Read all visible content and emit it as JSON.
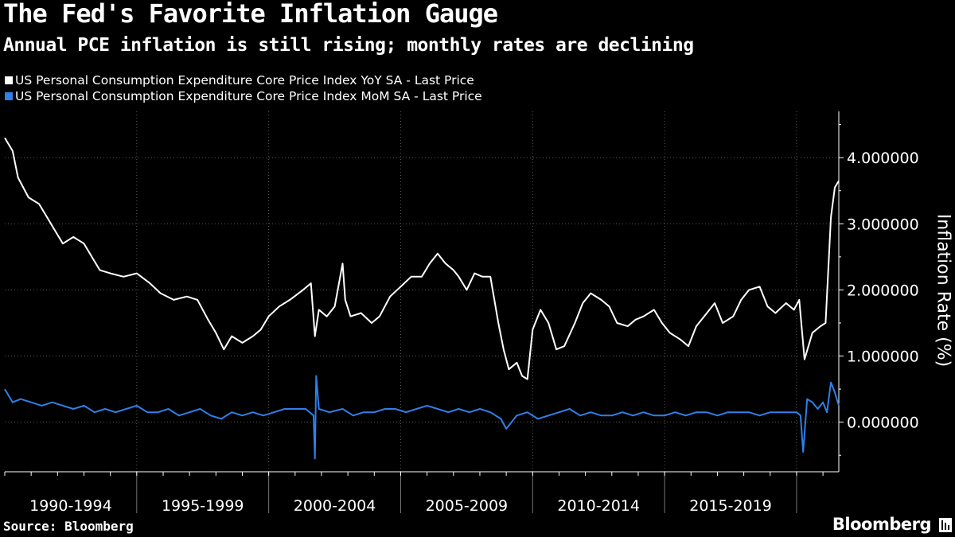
{
  "title": "The Fed's Favorite Inflation Gauge",
  "subtitle": "Annual PCE inflation is still rising; monthly rates are declining",
  "source": "Source: Bloomberg",
  "brand": "Bloomberg",
  "chart_data": {
    "type": "line",
    "ylabel": "Inflation Rate (%)",
    "ylim": [
      -0.75,
      4.7
    ],
    "yticks": [
      0,
      1,
      2,
      3,
      4
    ],
    "ytick_labels": [
      "0.000000",
      "1.000000",
      "2.000000",
      "3.000000",
      "4.000000"
    ],
    "xlim": [
      1990.0,
      2021.6
    ],
    "x_periods": [
      {
        "label": "1990-1994",
        "start": 1990,
        "end": 1995
      },
      {
        "label": "1995-1999",
        "start": 1995,
        "end": 2000
      },
      {
        "label": "2000-2004",
        "start": 2000,
        "end": 2005
      },
      {
        "label": "2005-2009",
        "start": 2005,
        "end": 2010
      },
      {
        "label": "2010-2014",
        "start": 2010,
        "end": 2015
      },
      {
        "label": "2015-2019",
        "start": 2015,
        "end": 2020
      }
    ],
    "grid": true,
    "legend_position": "top-left",
    "series": [
      {
        "name": "US Personal Consumption Expenditure Core Price Index YoY SA - Last Price",
        "color": "#ffffff",
        "points": [
          [
            1990.0,
            4.3
          ],
          [
            1990.3,
            4.1
          ],
          [
            1990.5,
            3.7
          ],
          [
            1990.9,
            3.4
          ],
          [
            1991.3,
            3.3
          ],
          [
            1991.6,
            3.1
          ],
          [
            1991.9,
            2.9
          ],
          [
            1992.2,
            2.7
          ],
          [
            1992.6,
            2.8
          ],
          [
            1993.0,
            2.7
          ],
          [
            1993.3,
            2.5
          ],
          [
            1993.6,
            2.3
          ],
          [
            1994.0,
            2.25
          ],
          [
            1994.5,
            2.2
          ],
          [
            1995.0,
            2.25
          ],
          [
            1995.5,
            2.1
          ],
          [
            1995.9,
            1.95
          ],
          [
            1996.4,
            1.85
          ],
          [
            1996.9,
            1.9
          ],
          [
            1997.3,
            1.85
          ],
          [
            1997.7,
            1.55
          ],
          [
            1998.0,
            1.35
          ],
          [
            1998.3,
            1.1
          ],
          [
            1998.6,
            1.3
          ],
          [
            1999.0,
            1.2
          ],
          [
            1999.4,
            1.3
          ],
          [
            1999.7,
            1.4
          ],
          [
            2000.0,
            1.6
          ],
          [
            2000.4,
            1.75
          ],
          [
            2000.8,
            1.85
          ],
          [
            2001.3,
            2.0
          ],
          [
            2001.6,
            2.1
          ],
          [
            2001.75,
            1.3
          ],
          [
            2001.9,
            1.7
          ],
          [
            2002.2,
            1.6
          ],
          [
            2002.5,
            1.75
          ],
          [
            2002.8,
            2.4
          ],
          [
            2002.9,
            1.85
          ],
          [
            2003.1,
            1.6
          ],
          [
            2003.5,
            1.65
          ],
          [
            2003.9,
            1.5
          ],
          [
            2004.2,
            1.6
          ],
          [
            2004.6,
            1.9
          ],
          [
            2005.0,
            2.05
          ],
          [
            2005.4,
            2.2
          ],
          [
            2005.8,
            2.2
          ],
          [
            2006.1,
            2.4
          ],
          [
            2006.4,
            2.55
          ],
          [
            2006.7,
            2.4
          ],
          [
            2007.0,
            2.3
          ],
          [
            2007.2,
            2.2
          ],
          [
            2007.5,
            2.0
          ],
          [
            2007.8,
            2.25
          ],
          [
            2008.1,
            2.2
          ],
          [
            2008.4,
            2.2
          ],
          [
            2008.7,
            1.5
          ],
          [
            2008.9,
            1.1
          ],
          [
            2009.1,
            0.8
          ],
          [
            2009.4,
            0.9
          ],
          [
            2009.6,
            0.7
          ],
          [
            2009.8,
            0.65
          ],
          [
            2010.0,
            1.4
          ],
          [
            2010.3,
            1.7
          ],
          [
            2010.6,
            1.5
          ],
          [
            2010.9,
            1.1
          ],
          [
            2011.2,
            1.15
          ],
          [
            2011.6,
            1.5
          ],
          [
            2011.9,
            1.8
          ],
          [
            2012.2,
            1.95
          ],
          [
            2012.6,
            1.85
          ],
          [
            2012.9,
            1.75
          ],
          [
            2013.2,
            1.5
          ],
          [
            2013.6,
            1.45
          ],
          [
            2013.9,
            1.55
          ],
          [
            2014.2,
            1.6
          ],
          [
            2014.6,
            1.7
          ],
          [
            2014.9,
            1.5
          ],
          [
            2015.2,
            1.35
          ],
          [
            2015.6,
            1.25
          ],
          [
            2015.9,
            1.15
          ],
          [
            2016.2,
            1.45
          ],
          [
            2016.6,
            1.65
          ],
          [
            2016.9,
            1.8
          ],
          [
            2017.2,
            1.5
          ],
          [
            2017.6,
            1.6
          ],
          [
            2017.9,
            1.85
          ],
          [
            2018.2,
            2.0
          ],
          [
            2018.6,
            2.05
          ],
          [
            2018.9,
            1.75
          ],
          [
            2019.2,
            1.65
          ],
          [
            2019.6,
            1.8
          ],
          [
            2019.9,
            1.7
          ],
          [
            2020.1,
            1.85
          ],
          [
            2020.3,
            0.95
          ],
          [
            2020.6,
            1.35
          ],
          [
            2020.9,
            1.45
          ],
          [
            2021.1,
            1.5
          ],
          [
            2021.3,
            3.1
          ],
          [
            2021.45,
            3.55
          ],
          [
            2021.6,
            3.65
          ]
        ]
      },
      {
        "name": "US Personal Consumption Expenditure Core Price Index MoM SA - Last Price",
        "color": "#2f80e8",
        "points": [
          [
            1990.0,
            0.5
          ],
          [
            1990.3,
            0.3
          ],
          [
            1990.6,
            0.35
          ],
          [
            1991.0,
            0.3
          ],
          [
            1991.4,
            0.25
          ],
          [
            1991.8,
            0.3
          ],
          [
            1992.2,
            0.25
          ],
          [
            1992.6,
            0.2
          ],
          [
            1993.0,
            0.25
          ],
          [
            1993.4,
            0.15
          ],
          [
            1993.8,
            0.2
          ],
          [
            1994.2,
            0.15
          ],
          [
            1994.6,
            0.2
          ],
          [
            1995.0,
            0.25
          ],
          [
            1995.4,
            0.15
          ],
          [
            1995.8,
            0.15
          ],
          [
            1996.2,
            0.2
          ],
          [
            1996.6,
            0.1
          ],
          [
            1997.0,
            0.15
          ],
          [
            1997.4,
            0.2
          ],
          [
            1997.8,
            0.1
          ],
          [
            1998.2,
            0.05
          ],
          [
            1998.6,
            0.15
          ],
          [
            1999.0,
            0.1
          ],
          [
            1999.4,
            0.15
          ],
          [
            1999.8,
            0.1
          ],
          [
            2000.2,
            0.15
          ],
          [
            2000.6,
            0.2
          ],
          [
            2001.0,
            0.2
          ],
          [
            2001.4,
            0.2
          ],
          [
            2001.7,
            0.1
          ],
          [
            2001.75,
            -0.55
          ],
          [
            2001.8,
            0.7
          ],
          [
            2001.9,
            0.2
          ],
          [
            2002.3,
            0.15
          ],
          [
            2002.8,
            0.2
          ],
          [
            2003.2,
            0.1
          ],
          [
            2003.6,
            0.15
          ],
          [
            2004.0,
            0.15
          ],
          [
            2004.4,
            0.2
          ],
          [
            2004.8,
            0.2
          ],
          [
            2005.2,
            0.15
          ],
          [
            2005.6,
            0.2
          ],
          [
            2006.0,
            0.25
          ],
          [
            2006.4,
            0.2
          ],
          [
            2006.8,
            0.15
          ],
          [
            2007.2,
            0.2
          ],
          [
            2007.6,
            0.15
          ],
          [
            2008.0,
            0.2
          ],
          [
            2008.4,
            0.15
          ],
          [
            2008.8,
            0.05
          ],
          [
            2009.0,
            -0.1
          ],
          [
            2009.4,
            0.1
          ],
          [
            2009.8,
            0.15
          ],
          [
            2010.2,
            0.05
          ],
          [
            2010.6,
            0.1
          ],
          [
            2011.0,
            0.15
          ],
          [
            2011.4,
            0.2
          ],
          [
            2011.8,
            0.1
          ],
          [
            2012.2,
            0.15
          ],
          [
            2012.6,
            0.1
          ],
          [
            2013.0,
            0.1
          ],
          [
            2013.4,
            0.15
          ],
          [
            2013.8,
            0.1
          ],
          [
            2014.2,
            0.15
          ],
          [
            2014.6,
            0.1
          ],
          [
            2015.0,
            0.1
          ],
          [
            2015.4,
            0.15
          ],
          [
            2015.8,
            0.1
          ],
          [
            2016.2,
            0.15
          ],
          [
            2016.6,
            0.15
          ],
          [
            2017.0,
            0.1
          ],
          [
            2017.4,
            0.15
          ],
          [
            2017.8,
            0.15
          ],
          [
            2018.2,
            0.15
          ],
          [
            2018.6,
            0.1
          ],
          [
            2019.0,
            0.15
          ],
          [
            2019.4,
            0.15
          ],
          [
            2019.8,
            0.15
          ],
          [
            2020.0,
            0.15
          ],
          [
            2020.15,
            0.1
          ],
          [
            2020.25,
            -0.45
          ],
          [
            2020.4,
            0.35
          ],
          [
            2020.6,
            0.3
          ],
          [
            2020.8,
            0.2
          ],
          [
            2021.0,
            0.3
          ],
          [
            2021.15,
            0.15
          ],
          [
            2021.3,
            0.6
          ],
          [
            2021.45,
            0.45
          ],
          [
            2021.6,
            0.25
          ]
        ]
      }
    ]
  }
}
